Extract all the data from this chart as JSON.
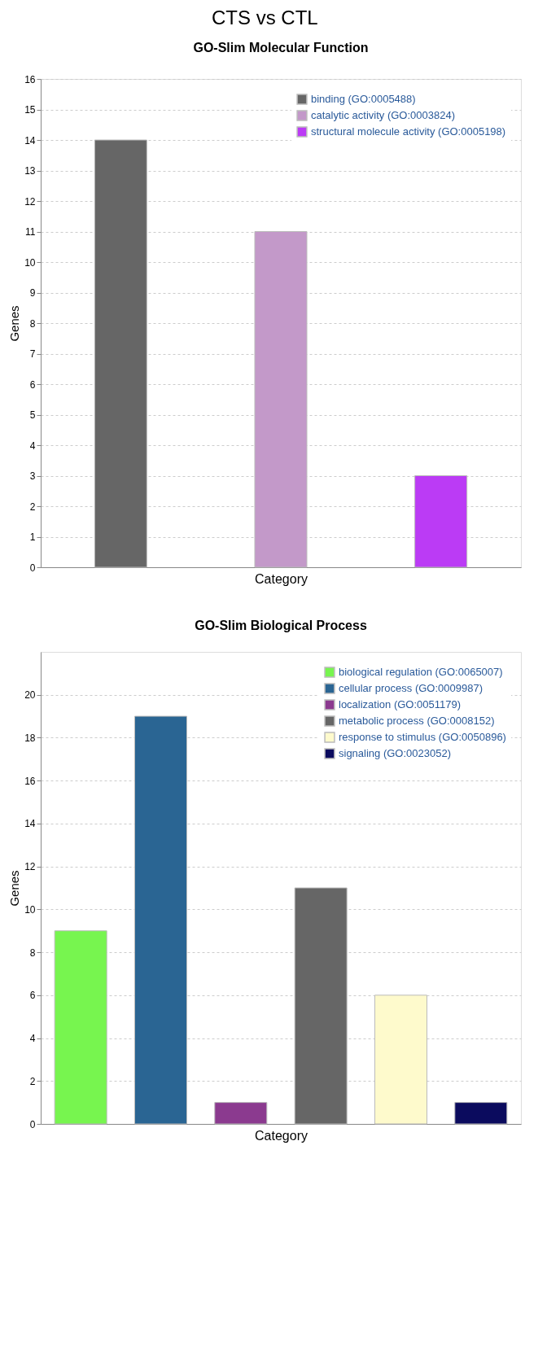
{
  "chart_data": [
    {
      "type": "bar",
      "title": "CTS vs CTL",
      "subtitle": "GO-Slim Molecular Function",
      "xlabel": "Category",
      "ylabel": "Genes",
      "categories": [
        null,
        null,
        null
      ],
      "series": [
        {
          "name": "binding (GO:0005488)",
          "color": "#666666",
          "values": [
            14,
            null,
            null
          ]
        },
        {
          "name": "catalytic activity (GO:0003824)",
          "color": "#c399c9",
          "values": [
            null,
            11,
            null
          ]
        },
        {
          "name": "structural molecule activity (GO:0005198)",
          "color": "#bb3bf5",
          "values": [
            null,
            null,
            3
          ]
        }
      ],
      "ylim": [
        0,
        16
      ],
      "yticks": [
        0,
        1,
        2,
        3,
        4,
        5,
        6,
        7,
        8,
        9,
        10,
        11,
        12,
        13,
        14,
        15,
        16
      ],
      "grid": "y",
      "legend": "top right"
    },
    {
      "type": "bar",
      "title": "GO-Slim Biological Process",
      "xlabel": "Category",
      "ylabel": "Genes",
      "categories": [
        null,
        null,
        null,
        null,
        null,
        null
      ],
      "series": [
        {
          "name": "biological regulation (GO:0065007)",
          "color": "#77f54f",
          "values": [
            9,
            null,
            null,
            null,
            null,
            null
          ]
        },
        {
          "name": "cellular process (GO:0009987)",
          "color": "#2a6593",
          "values": [
            null,
            19,
            null,
            null,
            null,
            null
          ]
        },
        {
          "name": "localization (GO:0051179)",
          "color": "#8b3a8f",
          "values": [
            null,
            null,
            1,
            null,
            null,
            null
          ]
        },
        {
          "name": "metabolic process (GO:0008152)",
          "color": "#666666",
          "values": [
            null,
            null,
            null,
            11,
            null,
            null
          ]
        },
        {
          "name": "response to stimulus (GO:0050896)",
          "color": "#fefacc",
          "values": [
            null,
            null,
            null,
            null,
            6,
            null
          ]
        },
        {
          "name": "signaling (GO:0023052)",
          "color": "#0b0b5e",
          "values": [
            null,
            null,
            null,
            null,
            null,
            1
          ]
        }
      ],
      "ylim": [
        0,
        22
      ],
      "yticks": [
        0,
        2,
        4,
        6,
        8,
        10,
        12,
        14,
        16,
        18,
        20
      ],
      "grid": "y",
      "legend": "top right"
    }
  ]
}
